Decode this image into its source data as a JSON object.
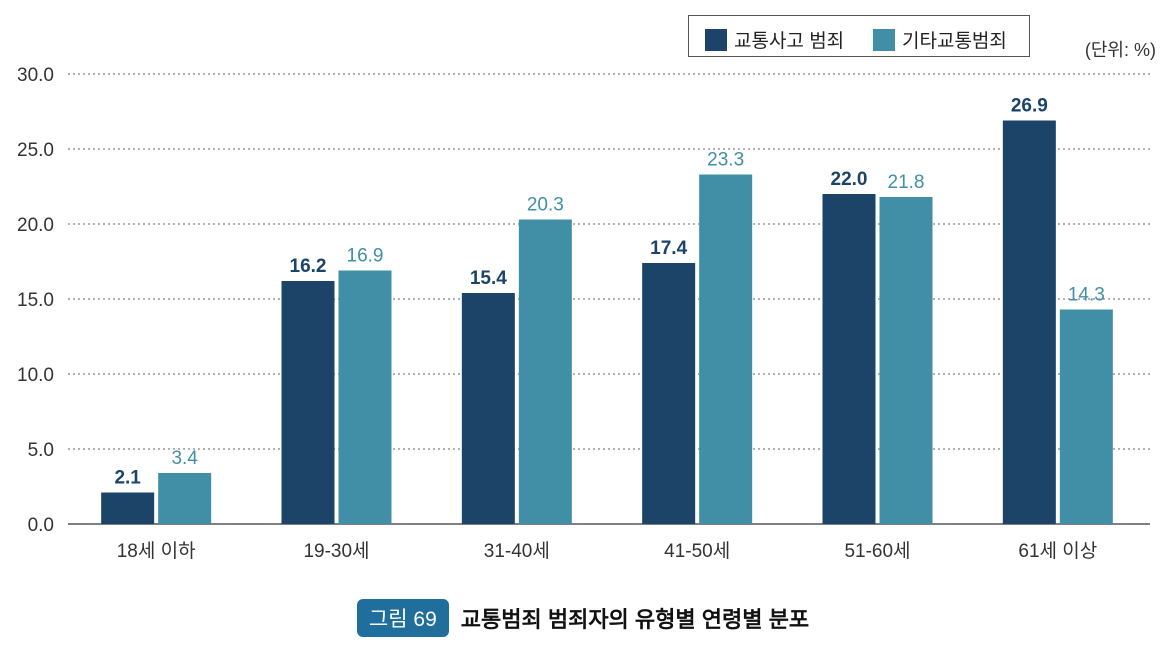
{
  "colors": {
    "series1": "#1b4468",
    "series2": "#418fa6",
    "grid": "#666666",
    "axis": "#555555"
  },
  "legend": {
    "items": [
      "교통사고 범죄",
      "기타교통범죄"
    ]
  },
  "unit_label": "(단위: %)",
  "caption": {
    "tag": "그림 69",
    "title": "교통범죄 범죄자의 유형별 연령별 분포"
  },
  "chart_data": {
    "type": "bar",
    "categories": [
      "18세 이하",
      "19-30세",
      "31-40세",
      "41-50세",
      "51-60세",
      "61세 이상"
    ],
    "series": [
      {
        "name": "교통사고 범죄",
        "values": [
          2.1,
          16.2,
          15.4,
          17.4,
          22.0,
          26.9
        ],
        "labels": [
          "2.1",
          "16.2",
          "15.4",
          "17.4",
          "22.0",
          "26.9"
        ]
      },
      {
        "name": "기타교통범죄",
        "values": [
          3.4,
          16.9,
          20.3,
          23.3,
          21.8,
          14.3
        ],
        "labels": [
          "3.4",
          "16.9",
          "20.3",
          "23.3",
          "21.8",
          "14.3"
        ]
      }
    ],
    "yticks": [
      "0.0",
      "5.0",
      "10.0",
      "15.0",
      "20.0",
      "25.0",
      "30.0"
    ],
    "ylim": [
      0,
      30
    ],
    "grid": true,
    "legend_position": "top-right"
  }
}
